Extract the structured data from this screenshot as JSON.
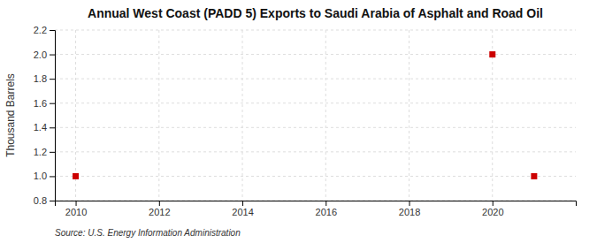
{
  "chart_data": {
    "type": "scatter",
    "title": "Annual West Coast (PADD 5) Exports to Saudi Arabia of Asphalt and Road Oil",
    "ylabel": "Thousand Barrels",
    "source": "Source: U.S. Energy Information Administration",
    "x": [
      2010,
      2020,
      2021
    ],
    "values": [
      1.0,
      2.0,
      1.0
    ],
    "color": "#cc0000",
    "marker": "square",
    "xlim": [
      2009.5,
      2022.0
    ],
    "ylim": [
      0.8,
      2.2
    ],
    "xticks": [
      2010,
      2012,
      2014,
      2016,
      2018,
      2020
    ],
    "yticks": [
      0.8,
      {
        "value": 1.0,
        "label": "1.0"
      },
      1.2,
      1.4,
      1.6,
      1.8,
      {
        "value": 2.0,
        "label": "2.0"
      },
      2.2
    ],
    "grid": true
  }
}
